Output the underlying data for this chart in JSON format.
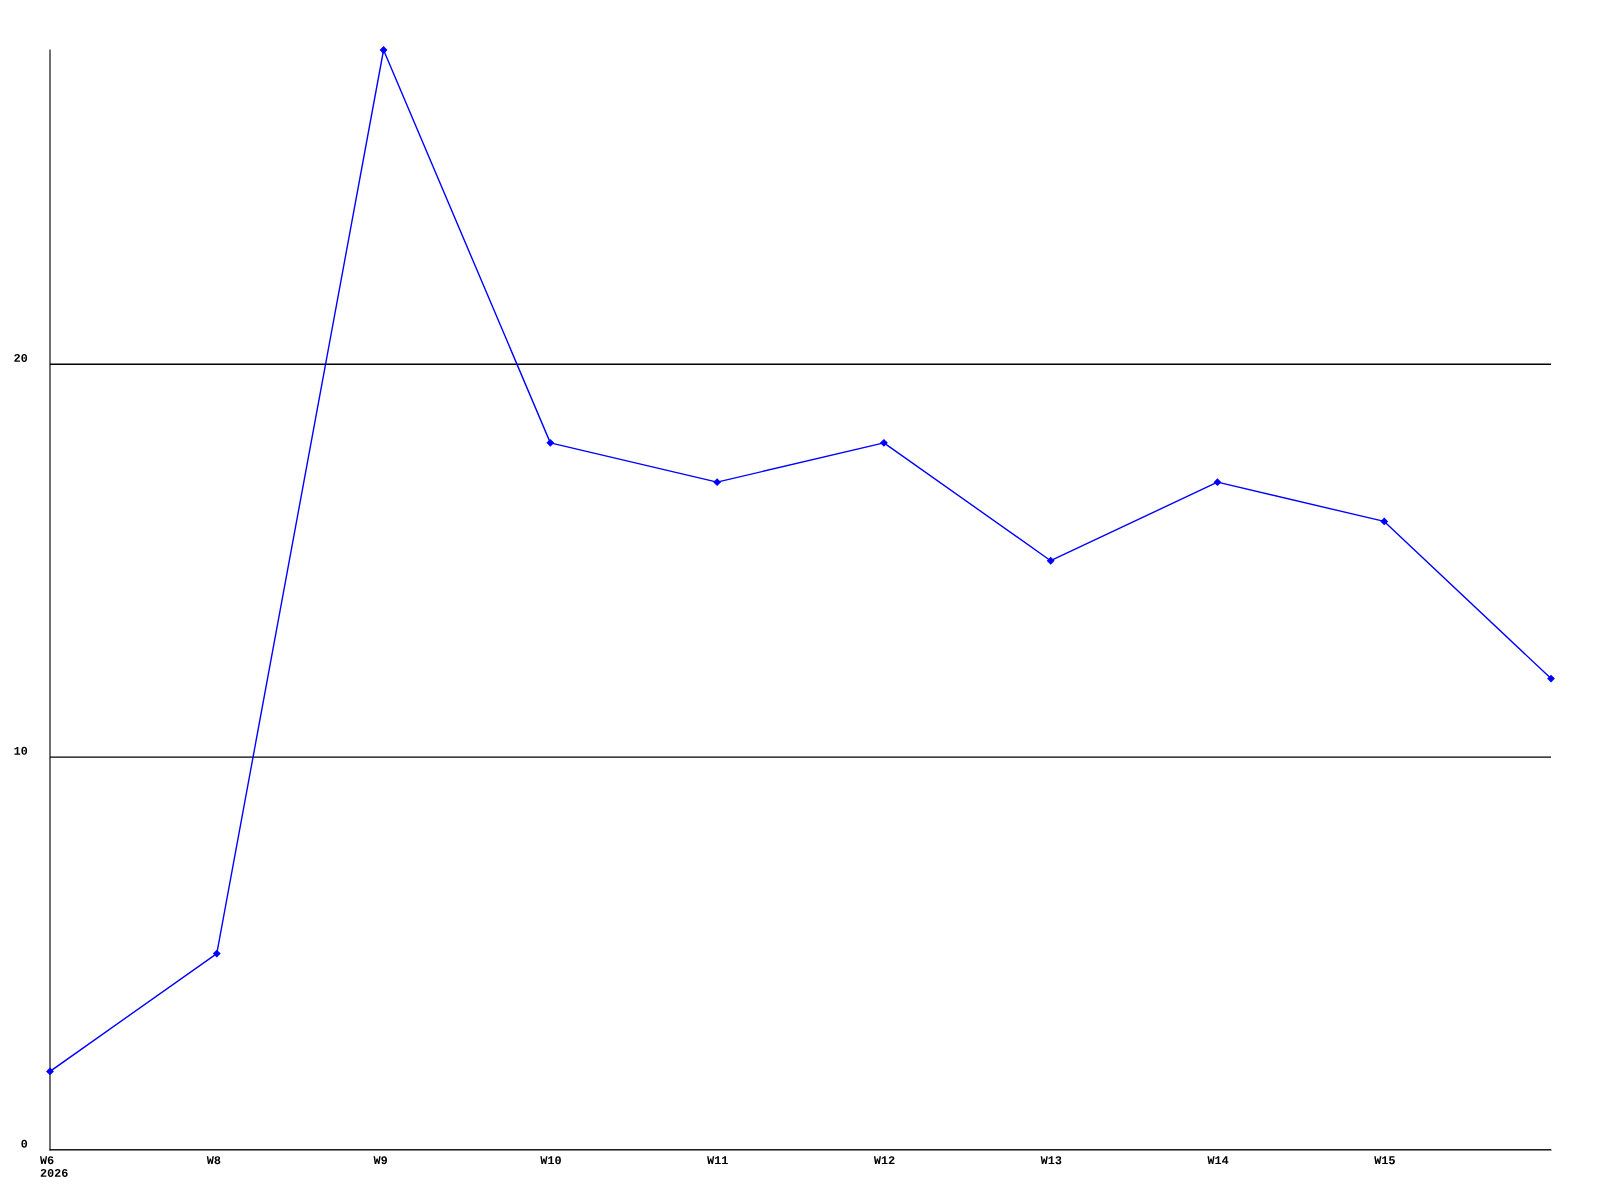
{
  "chart_data": {
    "type": "line",
    "categories": [
      "W6\n2026",
      "W8",
      "W9",
      "W10",
      "W11",
      "W12",
      "W13",
      "W14",
      "W15",
      null
    ],
    "series": [
      {
        "color": "#0000ff",
        "values": [
          2,
          5,
          28,
          18,
          17,
          18,
          15,
          17,
          16,
          12
        ]
      }
    ],
    "ylim": [
      0,
      28
    ],
    "yticks": [
      0,
      10,
      20
    ],
    "grid": "y",
    "marker": "diamond",
    "line_style": "solid"
  }
}
